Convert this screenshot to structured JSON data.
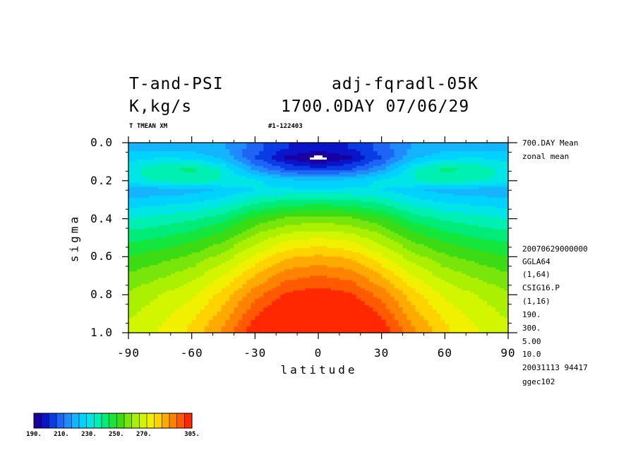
{
  "header": {
    "title_left": "T-and-PSI",
    "title_right": "adj-fqradl-05K",
    "units": "K,kg/s",
    "date_line": "1700.0DAY 07/06/29",
    "var_label": "T TMEAN XM",
    "run_id": "#1-122403"
  },
  "side_info": {
    "mean": "700.DAY Mean",
    "zonal": "zonal mean",
    "lines": [
      "20070629000000",
      "GGLA64",
      "(1,64)",
      "CSIG16.P",
      "(1,16)",
      "190.",
      "300.",
      "5.00",
      "10.0",
      "20031113  94417",
      "ggec102"
    ]
  },
  "colors": {
    "levels": [
      "#1a00a0",
      "#0a14c8",
      "#0a3ce6",
      "#1e64f5",
      "#1e8cff",
      "#14b4ff",
      "#00d2ff",
      "#00e6e6",
      "#00f0b4",
      "#00eb78",
      "#14e63c",
      "#3cdc14",
      "#78e60a",
      "#aaf000",
      "#d2f500",
      "#f0f000",
      "#ffd200",
      "#ffaa00",
      "#ff8200",
      "#ff5a00",
      "#ff2800"
    ]
  },
  "chart_data": {
    "type": "heatmap",
    "title": "T-and-PSI",
    "xlabel": "latitude",
    "ylabel": "sigma",
    "xlim": [
      -90,
      90
    ],
    "ylim": [
      1.0,
      0.0
    ],
    "x_ticks": [
      "-90",
      "-60",
      "-30",
      "0",
      "30",
      "60",
      "90"
    ],
    "x_tick_values": [
      -90,
      -60,
      -30,
      0,
      30,
      60,
      90
    ],
    "y_ticks": [
      "0.0",
      "0.2",
      "0.4",
      "0.6",
      "0.8",
      "1.0"
    ],
    "y_tick_values": [
      0.0,
      0.2,
      0.4,
      0.6,
      0.8,
      1.0
    ],
    "contour_interval": 5,
    "min": 190,
    "max": 305,
    "colorbar": {
      "labels": [
        "190.",
        "210.",
        "230.",
        "250.",
        "270.",
        "305."
      ],
      "label_values": [
        190,
        210,
        230,
        250,
        270,
        305
      ],
      "min": 190,
      "max": 305
    },
    "x": [
      -90,
      -75,
      -60,
      -45,
      -30,
      -15,
      0,
      15,
      30,
      45,
      60,
      75,
      90
    ],
    "y": [
      0.03,
      0.08,
      0.14,
      0.2,
      0.25,
      0.3,
      0.4,
      0.5,
      0.6,
      0.7,
      0.8,
      0.9,
      0.97
    ],
    "z": [
      [
        218,
        218,
        218,
        216,
        207,
        200,
        198,
        200,
        207,
        216,
        218,
        218,
        218
      ],
      [
        223,
        225,
        224,
        219,
        205,
        194,
        188,
        194,
        205,
        219,
        224,
        225,
        223
      ],
      [
        228,
        234,
        236,
        229,
        214,
        205,
        202,
        205,
        214,
        229,
        236,
        234,
        228
      ],
      [
        228,
        231,
        233,
        230,
        226,
        222,
        220,
        222,
        226,
        230,
        233,
        231,
        228
      ],
      [
        216,
        217,
        218,
        221,
        225,
        226,
        226,
        226,
        225,
        221,
        218,
        217,
        216
      ],
      [
        221,
        222,
        223,
        226,
        232,
        235,
        236,
        235,
        232,
        226,
        223,
        222,
        221
      ],
      [
        230,
        232,
        234,
        238,
        246,
        251,
        252,
        251,
        246,
        238,
        234,
        232,
        230
      ],
      [
        238,
        240,
        243,
        248,
        257,
        263,
        265,
        263,
        257,
        248,
        243,
        240,
        238
      ],
      [
        245,
        248,
        251,
        257,
        266,
        274,
        276,
        274,
        266,
        257,
        251,
        248,
        245
      ],
      [
        251,
        254,
        258,
        265,
        275,
        283,
        285,
        283,
        275,
        265,
        258,
        254,
        251
      ],
      [
        256,
        260,
        264,
        272,
        283,
        291,
        293,
        291,
        283,
        272,
        264,
        260,
        256
      ],
      [
        259,
        263,
        268,
        277,
        289,
        298,
        301,
        298,
        289,
        277,
        268,
        263,
        259
      ],
      [
        261,
        265,
        271,
        280,
        293,
        302,
        304,
        302,
        293,
        280,
        271,
        265,
        261
      ]
    ]
  }
}
